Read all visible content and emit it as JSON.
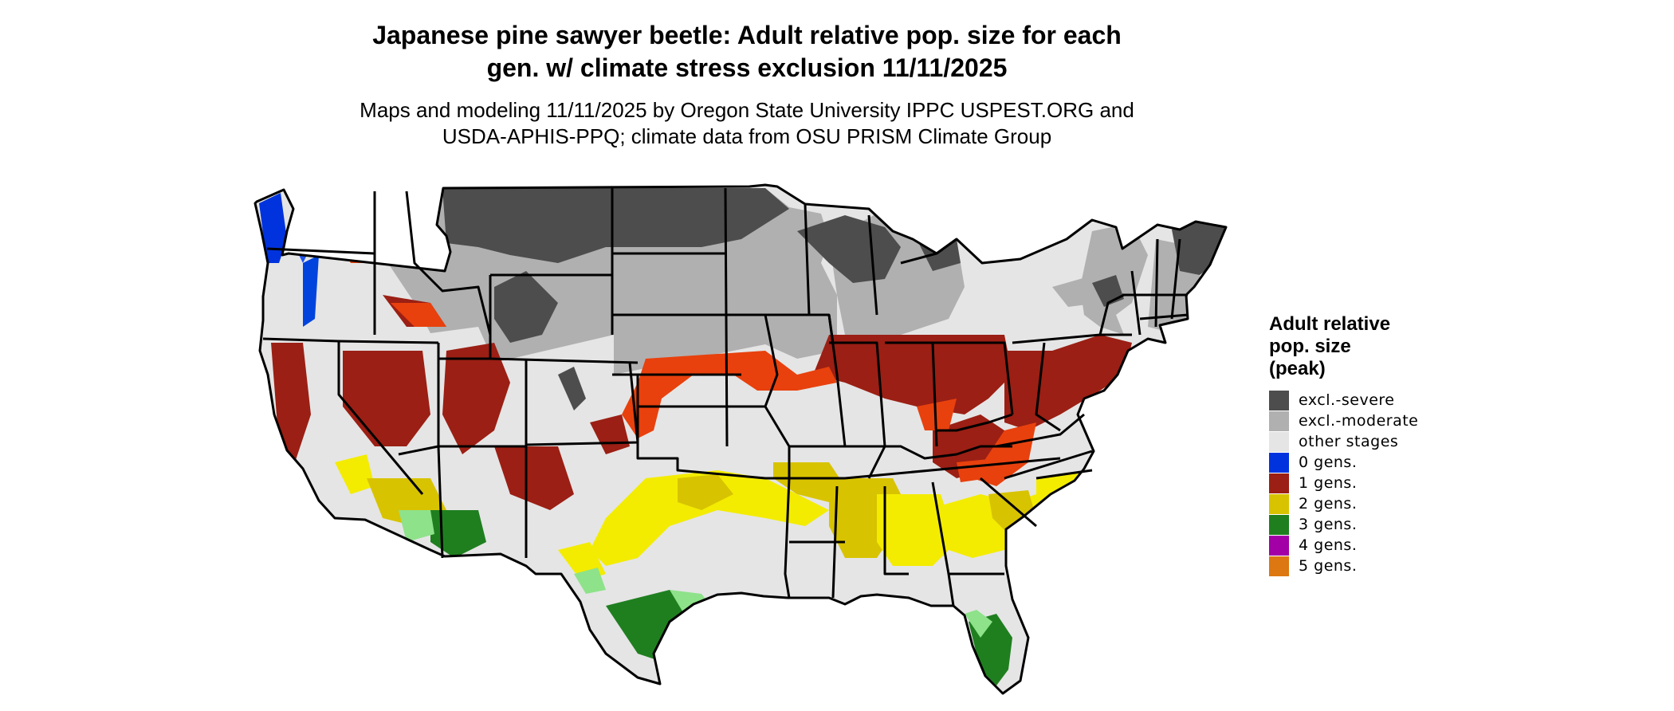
{
  "title_line1": "Japanese pine sawyer beetle: Adult relative pop. size for each",
  "title_line2": "gen. w/ climate stress exclusion 11/11/2025",
  "subtitle_line1": "Maps and modeling 11/11/2025 by Oregon State University IPPC USPEST.ORG and",
  "subtitle_line2": "USDA-APHIS-PPQ; climate data from OSU PRISM Climate Group",
  "legend": {
    "title_line1": "Adult relative",
    "title_line2": "pop. size",
    "title_line3": "(peak)",
    "items": [
      {
        "label": "excl.-severe",
        "color": "#4d4d4d"
      },
      {
        "label": "excl.-moderate",
        "color": "#b0b0b0"
      },
      {
        "label": "other stages",
        "color": "#e5e5e5"
      },
      {
        "label": "0 gens.",
        "color": "#0033dd"
      },
      {
        "label": "1 gens.",
        "color": "#9b1f14"
      },
      {
        "label": "2 gens.",
        "color": "#d8c300"
      },
      {
        "label": "3 gens.",
        "color": "#1f7f1f"
      },
      {
        "label": "4 gens.",
        "color": "#a200a6"
      },
      {
        "label": "5 gens.",
        "color": "#dd7711"
      }
    ]
  },
  "colors": {
    "severe": "#4d4d4d",
    "moderate": "#b0b0b0",
    "other": "#e5e5e5",
    "gen0": "#0033dd",
    "gen1": "#9b1f14",
    "gen1_light": "#e8410d",
    "gen2": "#d8c300",
    "gen2_light": "#f3ec00",
    "gen3": "#1f7f1f",
    "gen3_light": "#8ee28a",
    "border": "#000000"
  }
}
